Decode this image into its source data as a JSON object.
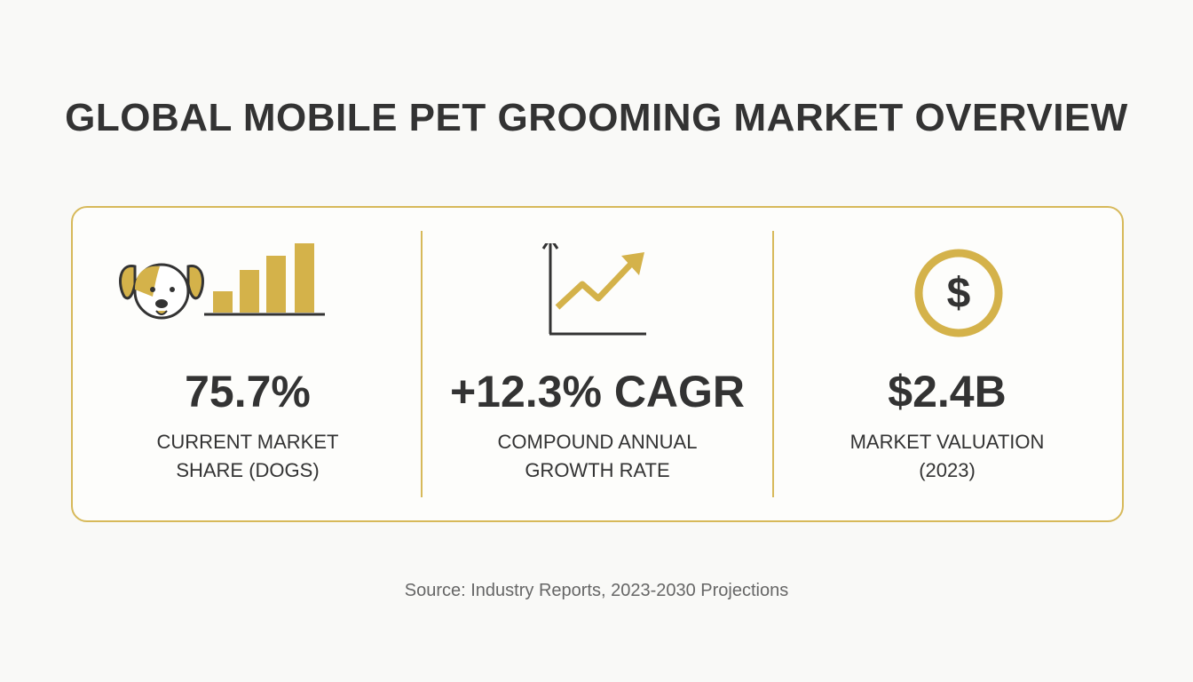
{
  "title": "GLOBAL MOBILE PET GROOMING MARKET OVERVIEW",
  "stats": [
    {
      "value": "75.7%",
      "label_lines": [
        "CURRENT MARKET",
        "SHARE (DOGS)"
      ]
    },
    {
      "value": "+12.3% CAGR",
      "label_lines": [
        "COMPOUND ANNUAL",
        "GROWTH RATE"
      ]
    },
    {
      "value": "$2.4B",
      "label_lines": [
        "MARKET VALUATION",
        "(2023)"
      ]
    }
  ],
  "source": "Source: Industry Reports, 2023-2030 Projections"
}
